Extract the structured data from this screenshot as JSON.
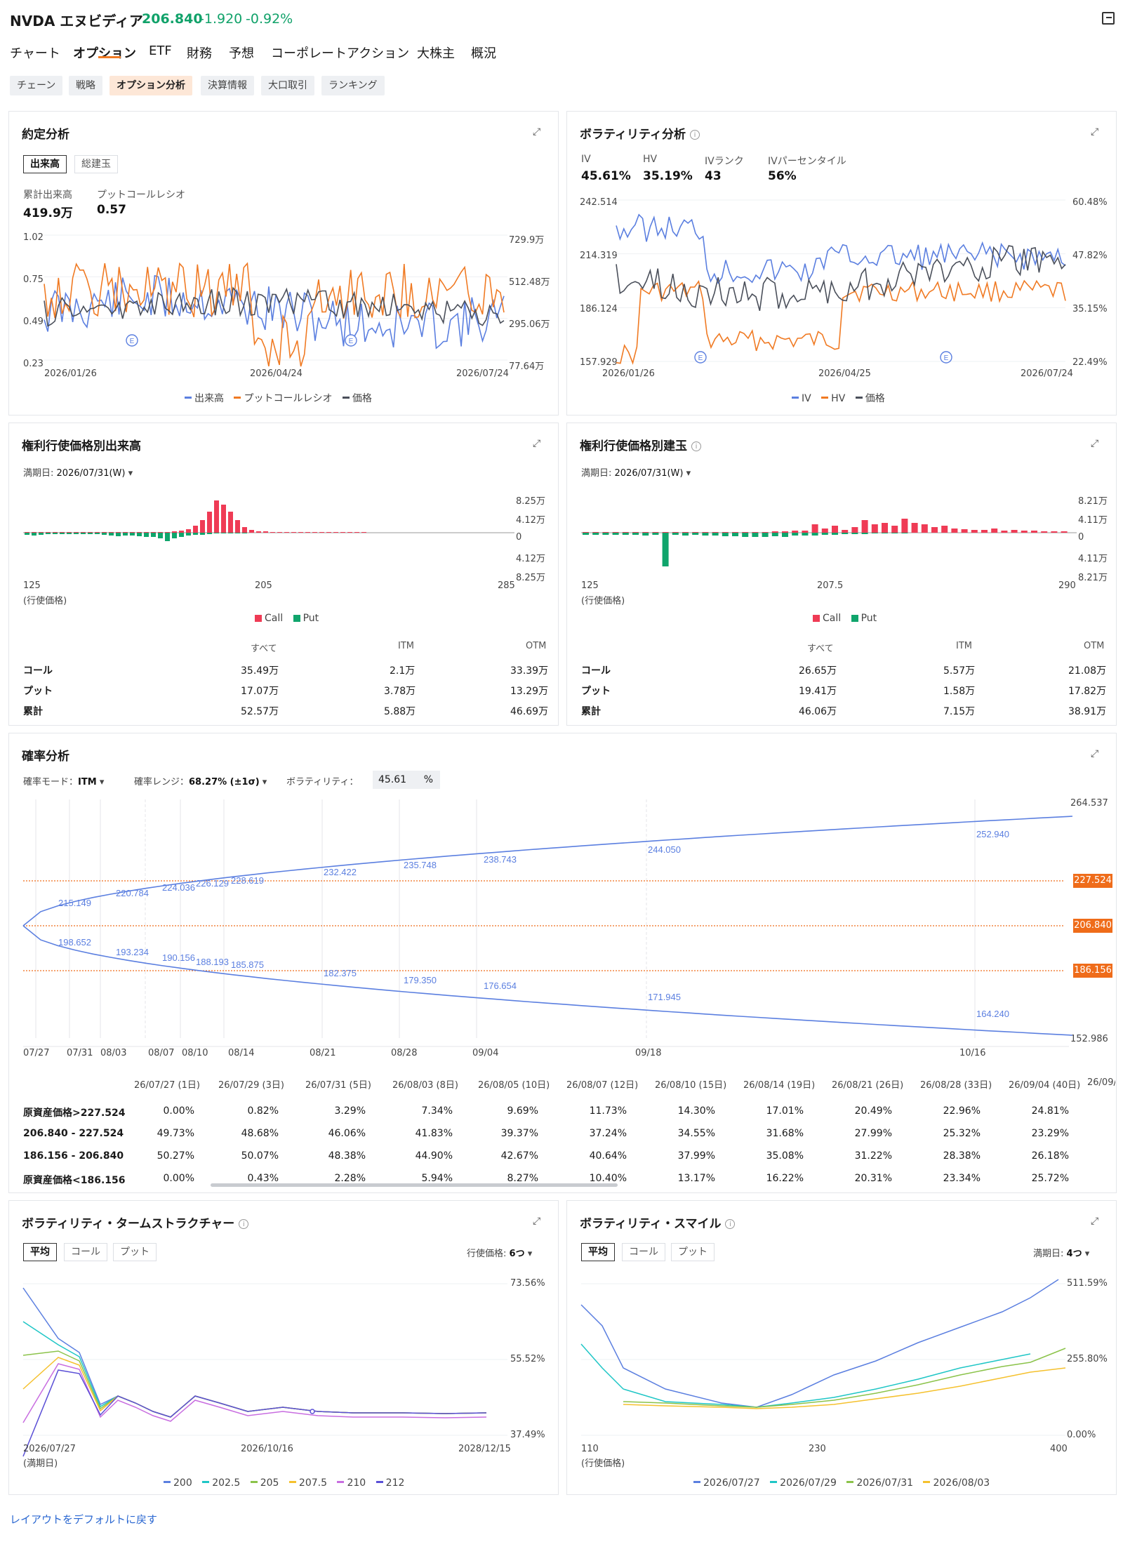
{
  "header": {
    "ticker": "NVDA エヌビディア",
    "price": "206.840",
    "change": "-1.920",
    "change_pct": "-0.92%",
    "exit_icon": "exit-icon"
  },
  "tabs": [
    "チャート",
    "オプション",
    "ETF",
    "財務",
    "予想",
    "コーポレートアクション",
    "大株主",
    "概況"
  ],
  "active_tab": "オプション",
  "subtabs": [
    "チェーン",
    "戦略",
    "オプション分析",
    "決算情報",
    "大口取引",
    "ランキング"
  ],
  "active_subtab": "オプション分析",
  "colors": {
    "up": "#11a26a",
    "accent": "#f07a23",
    "blue": "#5b7fe0",
    "orange": "#f07a23",
    "gray": "#4a4f5a",
    "call": "#ef3b55",
    "put": "#10a56c"
  },
  "contract": {
    "title": "約定分析",
    "toggle": [
      "出来高",
      "総建玉"
    ],
    "active_toggle": "出来高",
    "cum_volume_label": "累計出来高",
    "cum_volume": "419.9万",
    "pcr_label": "プットコールレシオ",
    "pcr": "0.57",
    "left_axis": [
      "1.02",
      "0.75",
      "0.49",
      "0.23"
    ],
    "right_axis": [
      "729.9万",
      "512.48万",
      "295.06万",
      "77.64万"
    ],
    "x_labels": [
      "2026/01/26",
      "2026/04/24",
      "2026/07/24"
    ],
    "earnings_marker": "E",
    "legend": [
      "出来高",
      "プットコールレシオ",
      "価格"
    ]
  },
  "volatility": {
    "title": "ボラティリティ分析",
    "metrics": [
      {
        "label": "IV",
        "value": "45.61%"
      },
      {
        "label": "HV",
        "value": "35.19%"
      },
      {
        "label": "IVランク",
        "value": "43"
      },
      {
        "label": "IVパーセンタイル",
        "value": "56%"
      }
    ],
    "left_axis": [
      "242.514",
      "214.319",
      "186.124",
      "157.929"
    ],
    "right_axis": [
      "60.48%",
      "47.82%",
      "35.15%",
      "22.49%"
    ],
    "x_labels": [
      "2026/01/26",
      "2026/04/25",
      "2026/07/24"
    ],
    "legend": [
      "IV",
      "HV",
      "価格"
    ]
  },
  "strike_volume": {
    "title": "権利行使価格別出来高",
    "expiry_label": "満期日:",
    "expiry": "2026/07/31(W)",
    "right_axis": [
      "8.25万",
      "4.12万",
      "0",
      "4.12万",
      "8.25万"
    ],
    "x_labels": [
      "125",
      "205",
      "285"
    ],
    "x_caption": "(行使価格)",
    "legend": [
      "Call",
      "Put"
    ],
    "table": {
      "headers": [
        "すべて",
        "ITM",
        "OTM"
      ],
      "rows": [
        {
          "label": "コール",
          "all": "35.49万",
          "itm": "2.1万",
          "otm": "33.39万"
        },
        {
          "label": "プット",
          "all": "17.07万",
          "itm": "3.78万",
          "otm": "13.29万"
        },
        {
          "label": "累計",
          "all": "52.57万",
          "itm": "5.88万",
          "otm": "46.69万"
        }
      ]
    }
  },
  "strike_oi": {
    "title": "権利行使価格別建玉",
    "expiry_label": "満期日:",
    "expiry": "2026/07/31(W)",
    "right_axis": [
      "8.21万",
      "4.11万",
      "0",
      "4.11万",
      "8.21万"
    ],
    "x_labels": [
      "125",
      "207.5",
      "290"
    ],
    "x_caption": "(行使価格)",
    "legend": [
      "Call",
      "Put"
    ],
    "table": {
      "headers": [
        "すべて",
        "ITM",
        "OTM"
      ],
      "rows": [
        {
          "label": "コール",
          "all": "26.65万",
          "itm": "5.57万",
          "otm": "21.08万"
        },
        {
          "label": "プット",
          "all": "19.41万",
          "itm": "1.58万",
          "otm": "17.82万"
        },
        {
          "label": "累計",
          "all": "46.06万",
          "itm": "7.15万",
          "otm": "38.91万"
        }
      ]
    }
  },
  "probability": {
    "title": "確率分析",
    "mode_label": "確率モード：",
    "mode": "ITM",
    "range_label": "確率レンジ：",
    "range": "68.27% (±1σ)",
    "vol_label": "ボラティリティ：",
    "vol_value": "45.61",
    "vol_unit": "%",
    "right_axis_top": "264.537",
    "right_axis_bottom": "152.986",
    "tags": [
      "227.524",
      "206.840",
      "186.156"
    ],
    "upper_labels": [
      "215.149",
      "220.784",
      "224.036",
      "226.129",
      "228.619",
      "232.422",
      "235.748",
      "238.743",
      "244.050",
      "252.940"
    ],
    "lower_labels": [
      "198.652",
      "193.234",
      "190.156",
      "188.193",
      "185.875",
      "182.375",
      "179.350",
      "176.654",
      "171.945",
      "164.240"
    ],
    "x_labels": [
      "07/27",
      "07/31",
      "08/03",
      "08/07",
      "08/10",
      "08/14",
      "08/21",
      "08/28",
      "09/04",
      "09/18",
      "10/16"
    ],
    "col_headers": [
      "26/07/27 (1日)",
      "26/07/29 (3日)",
      "26/07/31 (5日)",
      "26/08/03 (8日)",
      "26/08/05 (10日)",
      "26/08/07 (12日)",
      "26/08/10 (15日)",
      "26/08/14 (19日)",
      "26/08/21 (26日)",
      "26/08/28 (33日)",
      "26/09/04 (40日)",
      "26/09/"
    ],
    "rows": [
      {
        "label": "原資産価格>227.524",
        "values": [
          "0.00%",
          "0.82%",
          "3.29%",
          "7.34%",
          "9.69%",
          "11.73%",
          "14.30%",
          "17.01%",
          "20.49%",
          "22.96%",
          "24.81%"
        ]
      },
      {
        "label": "206.840 - 227.524",
        "values": [
          "49.73%",
          "48.68%",
          "46.06%",
          "41.83%",
          "39.37%",
          "37.24%",
          "34.55%",
          "31.68%",
          "27.99%",
          "25.32%",
          "23.29%"
        ]
      },
      {
        "label": "186.156 - 206.840",
        "values": [
          "50.27%",
          "50.07%",
          "48.38%",
          "44.90%",
          "42.67%",
          "40.64%",
          "37.99%",
          "35.08%",
          "31.22%",
          "28.38%",
          "26.18%"
        ]
      },
      {
        "label": "原資産価格<186.156",
        "values": [
          "0.00%",
          "0.43%",
          "2.28%",
          "5.94%",
          "8.27%",
          "10.40%",
          "13.17%",
          "16.22%",
          "20.31%",
          "23.34%",
          "25.72%"
        ]
      }
    ]
  },
  "term": {
    "title": "ボラティリティ・タームストラクチャー",
    "toggle": [
      "平均",
      "コール",
      "プット"
    ],
    "active_toggle": "平均",
    "strike_label": "行使価格:",
    "strike_count": "6つ",
    "right_axis": [
      "73.56%",
      "55.52%",
      "37.49%"
    ],
    "x_labels": [
      "2026/07/27",
      "2026/10/16",
      "2028/12/15"
    ],
    "x_caption": "(満期日)",
    "legend": [
      "200",
      "202.5",
      "205",
      "207.5",
      "210",
      "212"
    ]
  },
  "smile": {
    "title": "ボラティリティ・スマイル",
    "toggle": [
      "平均",
      "コール",
      "プット"
    ],
    "active_toggle": "平均",
    "expiry_label": "満期日:",
    "expiry_count": "4つ",
    "right_axis": [
      "511.59%",
      "255.80%",
      "0.00%"
    ],
    "x_labels": [
      "110",
      "230",
      "400"
    ],
    "x_caption": "(行使価格)",
    "legend": [
      "2026/07/27",
      "2026/07/29",
      "2026/07/31",
      "2026/08/03"
    ]
  },
  "footer": {
    "reset": "レイアウトをデフォルトに戻す"
  }
}
